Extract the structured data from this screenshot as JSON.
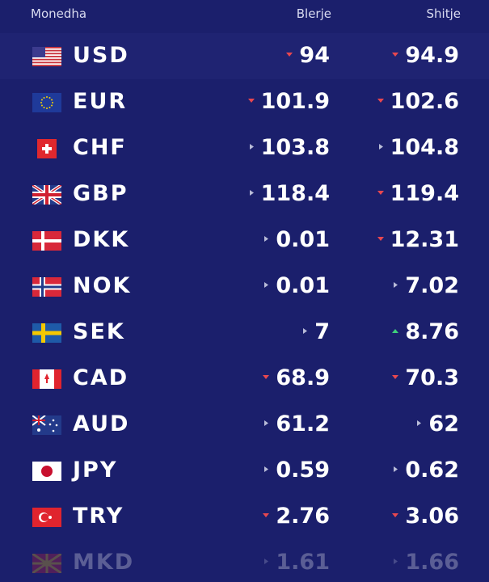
{
  "header": {
    "currency": "Monedha",
    "buy": "Blerje",
    "sell": "Shitje"
  },
  "rows": [
    {
      "code": "USD",
      "buy": "94",
      "buy_trend": "down",
      "sell": "94.9",
      "sell_trend": "down"
    },
    {
      "code": "EUR",
      "buy": "101.9",
      "buy_trend": "down",
      "sell": "102.6",
      "sell_trend": "down"
    },
    {
      "code": "CHF",
      "buy": "103.8",
      "buy_trend": "same",
      "sell": "104.8",
      "sell_trend": "same"
    },
    {
      "code": "GBP",
      "buy": "118.4",
      "buy_trend": "same",
      "sell": "119.4",
      "sell_trend": "down"
    },
    {
      "code": "DKK",
      "buy": "0.01",
      "buy_trend": "same",
      "sell": "12.31",
      "sell_trend": "down"
    },
    {
      "code": "NOK",
      "buy": "0.01",
      "buy_trend": "same",
      "sell": "7.02",
      "sell_trend": "same"
    },
    {
      "code": "SEK",
      "buy": "7",
      "buy_trend": "same",
      "sell": "8.76",
      "sell_trend": "up"
    },
    {
      "code": "CAD",
      "buy": "68.9",
      "buy_trend": "down",
      "sell": "70.3",
      "sell_trend": "down"
    },
    {
      "code": "AUD",
      "buy": "61.2",
      "buy_trend": "same",
      "sell": "62",
      "sell_trend": "same"
    },
    {
      "code": "JPY",
      "buy": "0.59",
      "buy_trend": "same",
      "sell": "0.62",
      "sell_trend": "same"
    },
    {
      "code": "TRY",
      "buy": "2.76",
      "buy_trend": "down",
      "sell": "3.06",
      "sell_trend": "down"
    },
    {
      "code": "MKD",
      "buy": "1.61",
      "buy_trend": "same",
      "sell": "1.66",
      "sell_trend": "same"
    }
  ]
}
